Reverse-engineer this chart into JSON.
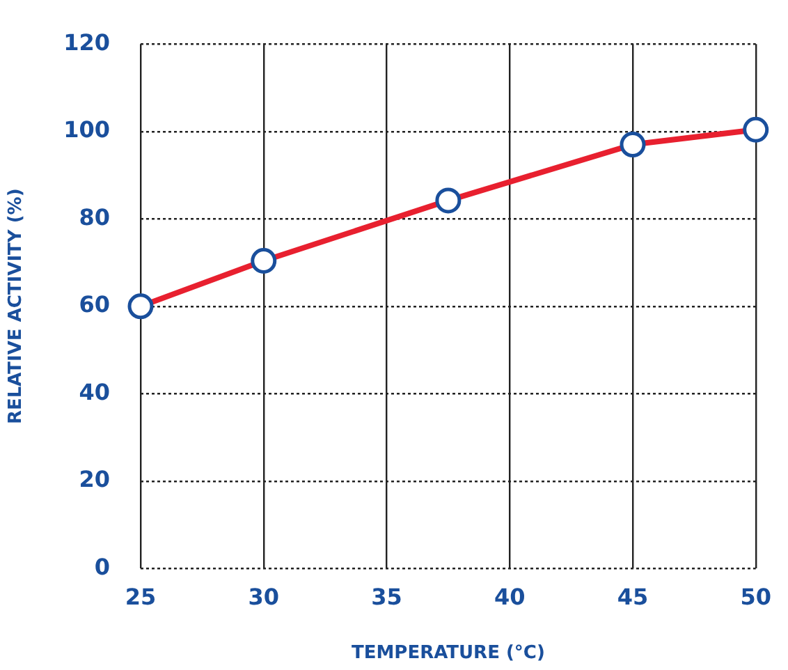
{
  "chart_data": {
    "type": "line",
    "xlabel": "TEMPERATURE (°C)",
    "ylabel": "RELATIVE ACTIVITY (%)",
    "x": [
      25,
      30,
      37.5,
      45,
      50
    ],
    "series": [
      {
        "color": "#e8202f",
        "values": [
          60,
          70.4,
          84.2,
          97,
          100.4
        ]
      }
    ],
    "xlim": [
      25,
      50
    ],
    "xticks": [
      25,
      30,
      35,
      40,
      45,
      50
    ],
    "ylim": [
      0,
      120
    ],
    "yticks": [
      0,
      20,
      40,
      60,
      80,
      100,
      120
    ],
    "grid": true,
    "legend": false,
    "marker": "circle",
    "line_style": "solid"
  }
}
